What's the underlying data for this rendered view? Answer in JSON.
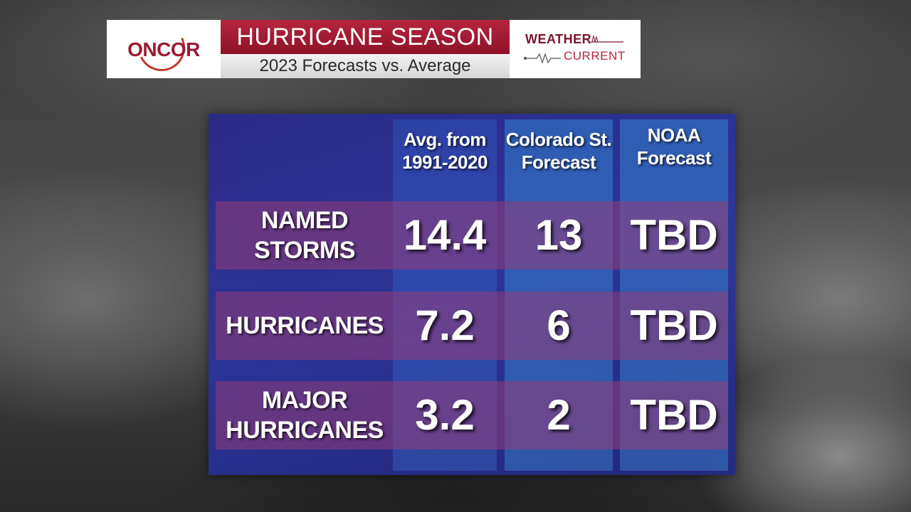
{
  "banner": {
    "logo_text": "ONCOR",
    "title": "HURRICANE SEASON",
    "subtitle": "2023 Forecasts vs. Average",
    "brand_weather": "WEATHER",
    "brand_current": "CURRENT"
  },
  "table": {
    "columns": [
      "Avg. from\n1991-2020",
      "Colorado St.\nForecast",
      "NOAA\nForecast"
    ],
    "rows": [
      {
        "label": "NAMED\nSTORMS",
        "values": [
          "14.4",
          "13",
          "TBD"
        ]
      },
      {
        "label": "HURRICANES",
        "values": [
          "7.2",
          "6",
          "TBD"
        ]
      },
      {
        "label": "MAJOR\nHURRICANES",
        "values": [
          "3.2",
          "2",
          "TBD"
        ]
      }
    ]
  },
  "colors": {
    "oncor_red": "#9b1b30",
    "title_bar": "#b5253e",
    "panel_blue": "#2a2f9a",
    "row_band": "#96397a"
  }
}
